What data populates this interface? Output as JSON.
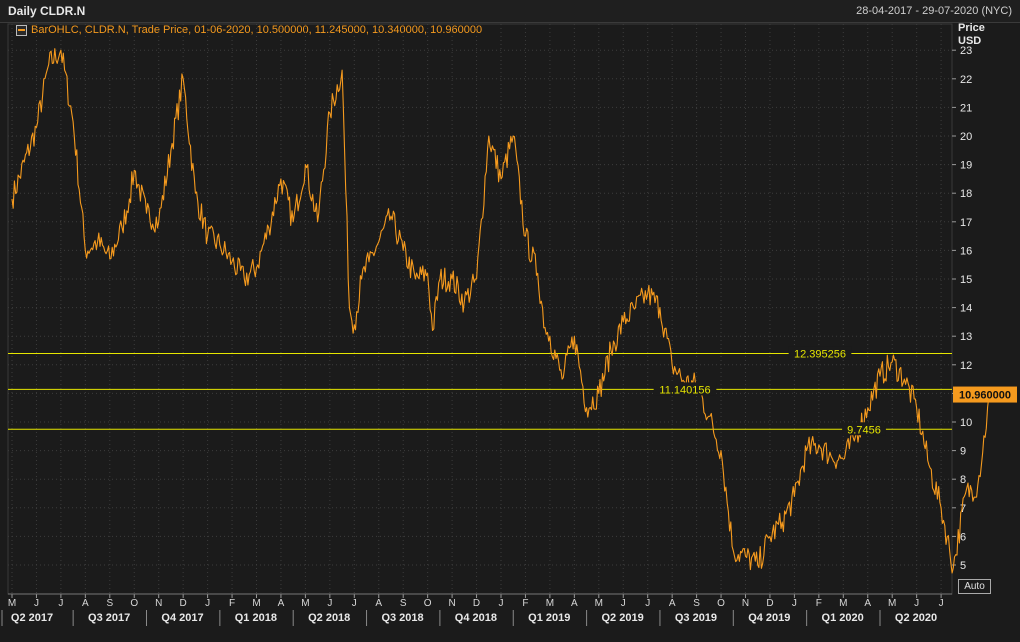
{
  "header": {
    "title": "Daily CLDR.N",
    "date_range": "28-04-2017 - 29-07-2020 (NYC)"
  },
  "legend": {
    "text": "BarOHLC, CLDR.N, Trade Price, 01-06-2020, 10.500000, 11.245000, 10.340000, 10.960000"
  },
  "axis": {
    "unit_line1": "Price",
    "unit_line2": "USD"
  },
  "controls": {
    "auto_label": "Auto"
  },
  "colors": {
    "series": "#f59a1e",
    "level_line": "#e6e600",
    "grid": "#3c3c3c",
    "background": "#1b1b1b"
  },
  "chart_data": {
    "type": "line",
    "title": "Daily CLDR.N",
    "ylabel": "Price USD",
    "ylim": [
      4.5,
      23.5
    ],
    "y_ticks": [
      5,
      6,
      7,
      8,
      9,
      10,
      11,
      12,
      13,
      14,
      15,
      16,
      17,
      18,
      19,
      20,
      21,
      22,
      23
    ],
    "month_ticks": [
      "M",
      "J",
      "J",
      "A",
      "S",
      "O",
      "N",
      "D",
      "J",
      "F",
      "M",
      "A",
      "M",
      "J",
      "J",
      "A",
      "S",
      "O",
      "N",
      "D",
      "J",
      "F",
      "M",
      "A",
      "M",
      "J",
      "J",
      "A",
      "S",
      "O",
      "N",
      "D",
      "J",
      "F",
      "M",
      "A",
      "M",
      "J",
      "J"
    ],
    "quarter_labels": [
      "Q2 2017",
      "Q3 2017",
      "Q4 2017",
      "Q1 2018",
      "Q2 2018",
      "Q3 2018",
      "Q4 2018",
      "Q1 2019",
      "Q2 2019",
      "Q3 2019",
      "Q4 2019",
      "Q1 2020",
      "Q2 2020"
    ],
    "levels": [
      {
        "value": 12.395256,
        "label": "12.395256"
      },
      {
        "value": 11.140156,
        "label": "11.140156"
      },
      {
        "value": 9.7456,
        "label": "9.7456"
      }
    ],
    "last_price": {
      "value": 10.96,
      "label": "10.960000"
    },
    "series": [
      {
        "x": [
          0,
          1,
          1.5,
          2,
          2.5,
          3,
          3.5,
          4,
          4.5,
          4.8,
          5,
          5.5,
          6,
          6.5,
          7,
          7.5,
          8,
          8.5,
          9,
          9.5,
          10,
          10.5,
          11,
          11.5,
          12,
          12.5,
          13,
          13.5,
          13.8,
          14,
          14.3,
          14.6,
          15,
          15.5,
          16,
          16.5,
          17,
          17.2,
          17.5,
          18,
          18.5,
          19,
          19.5,
          20,
          20.5,
          21,
          21.5,
          21.8,
          22,
          22.5,
          23,
          23.5,
          24,
          24.5,
          25,
          25.5,
          26,
          26.5,
          27,
          27.5,
          28,
          28.5,
          29,
          29.5,
          30,
          30.5,
          31,
          31.5,
          32,
          32.5,
          33,
          33.5,
          34,
          34.5,
          35,
          35.5,
          36,
          36.5,
          37,
          37.5,
          38,
          38.5,
          39,
          39.5,
          40
        ],
        "values": [
          17.8,
          20.3,
          22.5,
          23.0,
          20.5,
          16.0,
          16.3,
          15.7,
          16.8,
          17.8,
          18.8,
          17.3,
          17.0,
          19.5,
          22.0,
          18.0,
          16.5,
          16.2,
          15.6,
          15.0,
          15.4,
          16.8,
          18.5,
          17.0,
          19.0,
          17.0,
          20.8,
          22.3,
          14.0,
          13.4,
          15.0,
          15.6,
          16.3,
          17.2,
          16.0,
          15.0,
          15.2,
          13.2,
          15.0,
          15.0,
          14.2,
          15.0,
          20.0,
          18.5,
          20.0,
          16.5,
          15.2,
          13.3,
          13.0,
          11.5,
          13.0,
          10.5,
          11.0,
          12.5,
          13.5,
          14.0,
          14.5,
          14.0,
          12.0,
          11.4,
          11.3,
          10.2,
          9.0,
          5.5,
          5.3,
          5.0,
          6.0,
          6.5,
          7.4,
          9.0,
          9.2,
          8.8,
          8.7,
          9.5,
          10.5,
          11.6,
          12.1,
          11.5,
          10.5,
          8.5,
          7.0,
          4.9,
          7.5,
          7.8,
          10.96
        ]
      }
    ]
  }
}
